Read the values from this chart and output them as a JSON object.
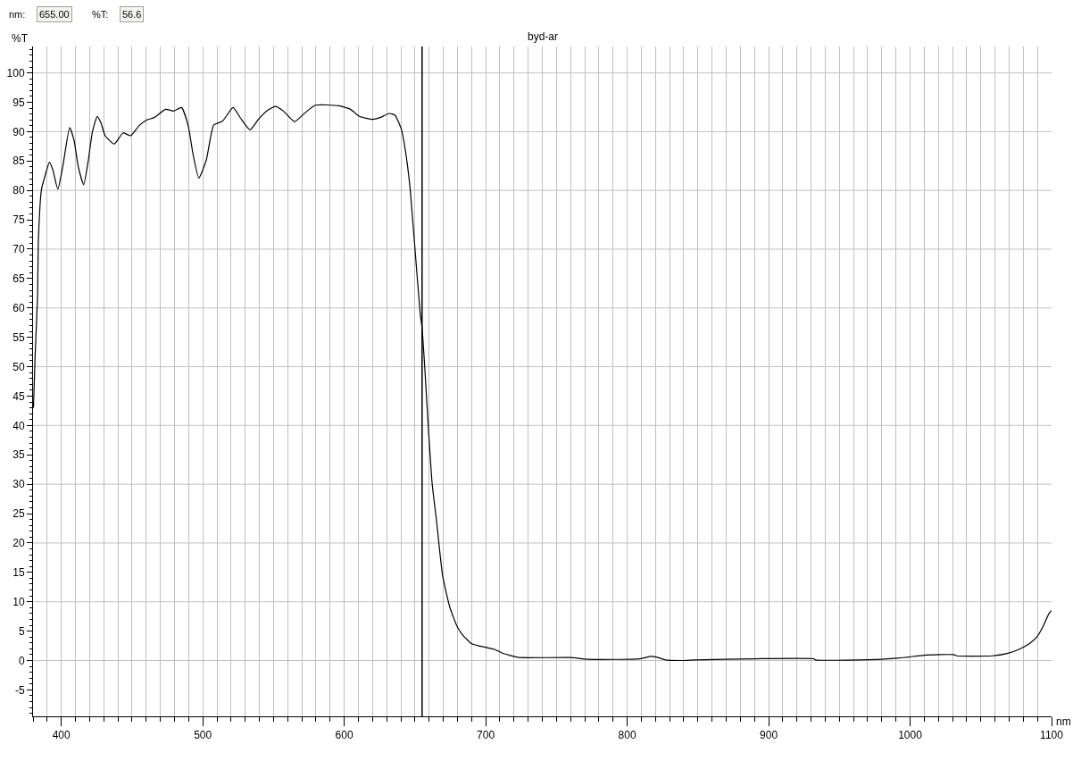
{
  "chart_data": {
    "type": "line",
    "title": "byd-ar",
    "xlabel": "nm",
    "ylabel": "%T",
    "annotations": [
      "nm:",
      "655.00",
      "%T:",
      "56.6"
    ],
    "marker": "none",
    "line_style": "solid",
    "grid": true,
    "xlim": [
      380,
      1100
    ],
    "ylim": [
      -9.5,
      104.5
    ],
    "xticks": [
      {
        "value": 380,
        "label": null
      },
      {
        "value": 390,
        "label": null
      },
      400,
      {
        "value": 410,
        "label": null
      },
      {
        "value": 420,
        "label": null
      },
      {
        "value": 430,
        "label": null
      },
      {
        "value": 440,
        "label": null
      },
      {
        "value": 450,
        "label": null
      },
      {
        "value": 460,
        "label": null
      },
      {
        "value": 470,
        "label": null
      },
      {
        "value": 480,
        "label": null
      },
      {
        "value": 490,
        "label": null
      },
      500,
      {
        "value": 510,
        "label": null
      },
      {
        "value": 520,
        "label": null
      },
      {
        "value": 530,
        "label": null
      },
      {
        "value": 540,
        "label": null
      },
      {
        "value": 550,
        "label": null
      },
      {
        "value": 560,
        "label": null
      },
      {
        "value": 570,
        "label": null
      },
      {
        "value": 580,
        "label": null
      },
      {
        "value": 590,
        "label": null
      },
      600,
      {
        "value": 610,
        "label": null
      },
      {
        "value": 620,
        "label": null
      },
      {
        "value": 630,
        "label": null
      },
      {
        "value": 640,
        "label": null
      },
      {
        "value": 650,
        "label": null
      },
      {
        "value": 660,
        "label": null
      },
      {
        "value": 670,
        "label": null
      },
      {
        "value": 680,
        "label": null
      },
      {
        "value": 690,
        "label": null
      },
      700,
      {
        "value": 710,
        "label": null
      },
      {
        "value": 720,
        "label": null
      },
      {
        "value": 730,
        "label": null
      },
      {
        "value": 740,
        "label": null
      },
      {
        "value": 750,
        "label": null
      },
      {
        "value": 760,
        "label": null
      },
      {
        "value": 770,
        "label": null
      },
      {
        "value": 780,
        "label": null
      },
      {
        "value": 790,
        "label": null
      },
      800,
      {
        "value": 810,
        "label": null
      },
      {
        "value": 820,
        "label": null
      },
      {
        "value": 830,
        "label": null
      },
      {
        "value": 840,
        "label": null
      },
      {
        "value": 850,
        "label": null
      },
      {
        "value": 860,
        "label": null
      },
      {
        "value": 870,
        "label": null
      },
      {
        "value": 880,
        "label": null
      },
      {
        "value": 890,
        "label": null
      },
      900,
      {
        "value": 910,
        "label": null
      },
      {
        "value": 920,
        "label": null
      },
      {
        "value": 930,
        "label": null
      },
      {
        "value": 940,
        "label": null
      },
      {
        "value": 950,
        "label": null
      },
      {
        "value": 960,
        "label": null
      },
      {
        "value": 970,
        "label": null
      },
      {
        "value": 980,
        "label": null
      },
      {
        "value": 990,
        "label": null
      },
      1000,
      {
        "value": 1010,
        "label": null
      },
      {
        "value": 1020,
        "label": null
      },
      {
        "value": 1030,
        "label": null
      },
      {
        "value": 1040,
        "label": null
      },
      {
        "value": 1050,
        "label": null
      },
      {
        "value": 1060,
        "label": null
      },
      {
        "value": 1070,
        "label": null
      },
      {
        "value": 1080,
        "label": null
      },
      {
        "value": 1090,
        "label": null
      },
      1100
    ],
    "yticks": [
      {
        "value": -9,
        "label": null
      },
      {
        "value": -8,
        "label": null
      },
      {
        "value": -7,
        "label": null
      },
      {
        "value": -6,
        "label": null
      },
      -5,
      {
        "value": -4,
        "label": null
      },
      {
        "value": -3,
        "label": null
      },
      {
        "value": -2,
        "label": null
      },
      {
        "value": -1,
        "label": null
      },
      0,
      {
        "value": 1,
        "label": null
      },
      {
        "value": 2,
        "label": null
      },
      {
        "value": 3,
        "label": null
      },
      {
        "value": 4,
        "label": null
      },
      5,
      {
        "value": 6,
        "label": null
      },
      {
        "value": 7,
        "label": null
      },
      {
        "value": 8,
        "label": null
      },
      {
        "value": 9,
        "label": null
      },
      10,
      {
        "value": 11,
        "label": null
      },
      {
        "value": 12,
        "label": null
      },
      {
        "value": 13,
        "label": null
      },
      {
        "value": 14,
        "label": null
      },
      15,
      {
        "value": 16,
        "label": null
      },
      {
        "value": 17,
        "label": null
      },
      {
        "value": 18,
        "label": null
      },
      {
        "value": 19,
        "label": null
      },
      20,
      {
        "value": 21,
        "label": null
      },
      {
        "value": 22,
        "label": null
      },
      {
        "value": 23,
        "label": null
      },
      {
        "value": 24,
        "label": null
      },
      25,
      {
        "value": 26,
        "label": null
      },
      {
        "value": 27,
        "label": null
      },
      {
        "value": 28,
        "label": null
      },
      {
        "value": 29,
        "label": null
      },
      30,
      {
        "value": 31,
        "label": null
      },
      {
        "value": 32,
        "label": null
      },
      {
        "value": 33,
        "label": null
      },
      {
        "value": 34,
        "label": null
      },
      35,
      {
        "value": 36,
        "label": null
      },
      {
        "value": 37,
        "label": null
      },
      {
        "value": 38,
        "label": null
      },
      {
        "value": 39,
        "label": null
      },
      40,
      {
        "value": 41,
        "label": null
      },
      {
        "value": 42,
        "label": null
      },
      {
        "value": 43,
        "label": null
      },
      {
        "value": 44,
        "label": null
      },
      45,
      {
        "value": 46,
        "label": null
      },
      {
        "value": 47,
        "label": null
      },
      {
        "value": 48,
        "label": null
      },
      {
        "value": 49,
        "label": null
      },
      50,
      {
        "value": 51,
        "label": null
      },
      {
        "value": 52,
        "label": null
      },
      {
        "value": 53,
        "label": null
      },
      {
        "value": 54,
        "label": null
      },
      55,
      {
        "value": 56,
        "label": null
      },
      {
        "value": 57,
        "label": null
      },
      {
        "value": 58,
        "label": null
      },
      {
        "value": 59,
        "label": null
      },
      60,
      {
        "value": 61,
        "label": null
      },
      {
        "value": 62,
        "label": null
      },
      {
        "value": 63,
        "label": null
      },
      {
        "value": 64,
        "label": null
      },
      65,
      {
        "value": 66,
        "label": null
      },
      {
        "value": 67,
        "label": null
      },
      {
        "value": 68,
        "label": null
      },
      {
        "value": 69,
        "label": null
      },
      70,
      {
        "value": 71,
        "label": null
      },
      {
        "value": 72,
        "label": null
      },
      {
        "value": 73,
        "label": null
      },
      {
        "value": 74,
        "label": null
      },
      75,
      {
        "value": 76,
        "label": null
      },
      {
        "value": 77,
        "label": null
      },
      {
        "value": 78,
        "label": null
      },
      {
        "value": 79,
        "label": null
      },
      80,
      {
        "value": 81,
        "label": null
      },
      {
        "value": 82,
        "label": null
      },
      {
        "value": 83,
        "label": null
      },
      {
        "value": 84,
        "label": null
      },
      85,
      {
        "value": 86,
        "label": null
      },
      {
        "value": 87,
        "label": null
      },
      {
        "value": 88,
        "label": null
      },
      {
        "value": 89,
        "label": null
      },
      90,
      {
        "value": 91,
        "label": null
      },
      {
        "value": 92,
        "label": null
      },
      {
        "value": 93,
        "label": null
      },
      {
        "value": 94,
        "label": null
      },
      95,
      {
        "value": 96,
        "label": null
      },
      {
        "value": 97,
        "label": null
      },
      {
        "value": 98,
        "label": null
      },
      {
        "value": 99,
        "label": null
      },
      100,
      {
        "value": 101,
        "label": null
      },
      {
        "value": 102,
        "label": null
      },
      {
        "value": 103,
        "label": null
      },
      {
        "value": 104,
        "label": null
      }
    ],
    "ref_lines": [
      {
        "axis": "x",
        "value": 655,
        "color": "#000000"
      }
    ],
    "series": [
      {
        "color": "#000000",
        "x": [
          380.3,
          381.5,
          383.2,
          383.8,
          386,
          388.5,
          391.6,
          394,
          397.5,
          401,
          405.9,
          409,
          412,
          415.8,
          419,
          422,
          425.4,
          428,
          431,
          437.4,
          443.7,
          449,
          455.3,
          460.5,
          465.7,
          473.7,
          479.4,
          485,
          489.9,
          493,
          497.2,
          502.5,
          507.7,
          514,
          521.4,
          526.7,
          533.4,
          539.3,
          545.6,
          551.4,
          557,
          564.9,
          571.8,
          579.6,
          596,
          604.4,
          610.7,
          620.1,
          625.4,
          631.7,
          635.9,
          640.5,
          643.2,
          646.4,
          649.5,
          653.7,
          655,
          656.9,
          659.4,
          662.1,
          665.3,
          669.5,
          674.7,
          680,
          684.2,
          690.5,
          698.9,
          706.2,
          711.5,
          719.9,
          724,
          759.8,
          772.4,
          809,
          816.5,
          820.7,
          827,
          839.6,
          848,
          890,
          932,
          933,
          980.3,
          990.8,
          999.2,
          1009.8,
          1030.8,
          1033,
          1058,
          1068.6,
          1077,
          1084.4,
          1089.6,
          1093.8,
          1098.4,
          1100
        ],
        "values": [
          43,
          52,
          62,
          71.6,
          80.2,
          82.5,
          84.8,
          83.5,
          80.2,
          84,
          90.7,
          88.5,
          84,
          81,
          85,
          90,
          92.6,
          91.5,
          89.3,
          87.9,
          89.8,
          89.3,
          91.1,
          92,
          92.4,
          93.8,
          93.5,
          94.1,
          90.8,
          86.3,
          82.1,
          85.2,
          91.1,
          91.8,
          94.1,
          92.3,
          90.3,
          92.1,
          93.6,
          94.3,
          93.5,
          91.7,
          93.1,
          94.5,
          94.4,
          93.8,
          92.6,
          92.1,
          92.4,
          93.1,
          92.8,
          90.3,
          86.8,
          80.7,
          71.6,
          59,
          56.6,
          49.9,
          39.8,
          30.2,
          23.6,
          14.5,
          9.0,
          5.7,
          4.2,
          2.8,
          2.3,
          1.9,
          1.3,
          0.7,
          0.5,
          0.5,
          0.2,
          0.3,
          0.7,
          0.6,
          0.1,
          0,
          0.1,
          0.3,
          0.3,
          0.1,
          0.2,
          0.4,
          0.6,
          0.9,
          1.0,
          0.8,
          0.8,
          1.2,
          1.9,
          2.9,
          4.0,
          5.7,
          8.1,
          8.5
        ]
      }
    ]
  }
}
